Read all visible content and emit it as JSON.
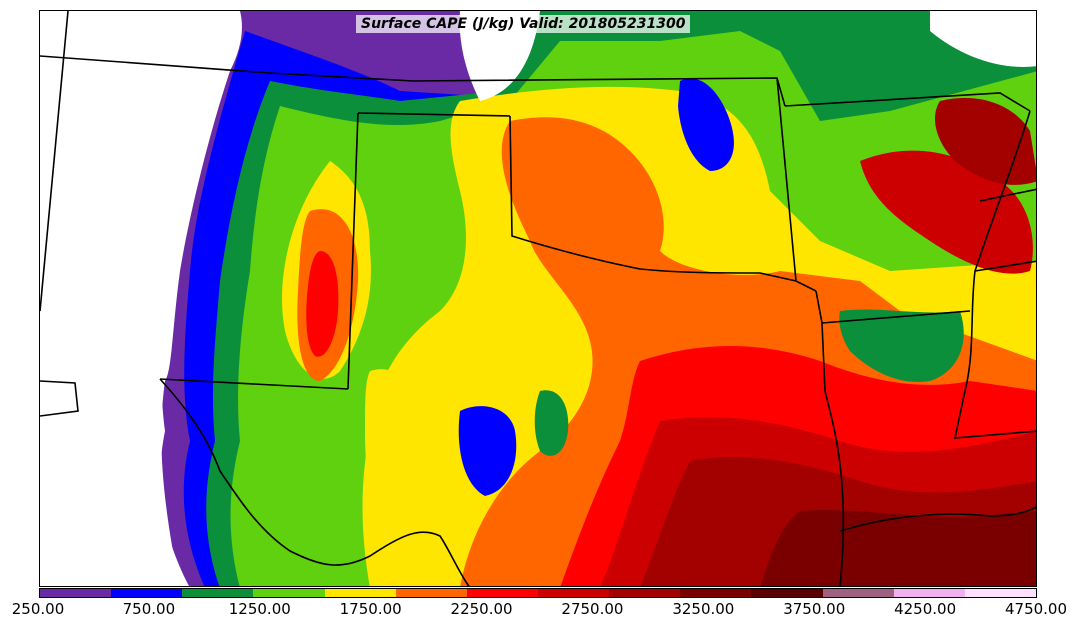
{
  "map": {
    "title": "Surface CAPE (J/kg) Valid: 201805231300",
    "legend": {
      "colors": [
        "#6a2aa6",
        "#0000ff",
        "#0c8f3a",
        "#5fd10e",
        "#ffe600",
        "#ff6600",
        "#ff0000",
        "#cc0000",
        "#a30000",
        "#7a0000",
        "#5a0000",
        "#a06080",
        "#f0b0f0",
        "#ffe0ff"
      ],
      "tick_labels": [
        "250.00",
        "750.00",
        "1250.00",
        "1750.00",
        "2250.00",
        "2750.00",
        "3250.00",
        "3750.00",
        "4250.00",
        "4750.00"
      ]
    }
  }
}
